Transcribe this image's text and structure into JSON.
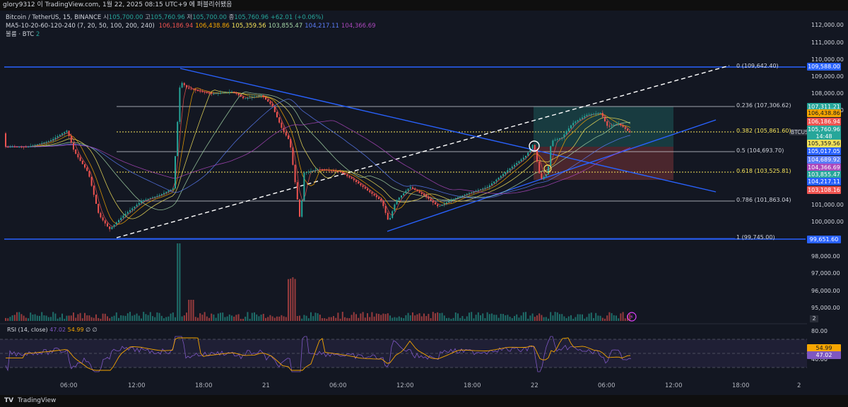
{
  "topbar": {
    "text": "glory9312 이 TradingView.com, 1월 22, 2025 08:15 UTC+9 에 퍼블리쉬됐음"
  },
  "legend": {
    "symbol": "Bitcoin / TetherUS, 15, BINANCE",
    "ohlc_open_label": "시",
    "ohlc_open": "105,700.00",
    "ohlc_high_label": "고",
    "ohlc_high": "105,760.96",
    "ohlc_low_label": "저",
    "ohlc_low": "105,700.00",
    "ohlc_close_label": "종",
    "ohlc_close": "105,760.96",
    "ohlc_change": "+62.01 (+0.06%)",
    "ma_title": "MA5-10-20-60-120-240 (7, 20, 50, 100, 200, 240)",
    "ma_values": [
      {
        "value": "106,186.94",
        "color": "#ef5350"
      },
      {
        "value": "106,438.86",
        "color": "#f7a600"
      },
      {
        "value": "105,359.56",
        "color": "#f5e35a"
      },
      {
        "value": "103,855.47",
        "color": "#a5d6a7"
      },
      {
        "value": "104,217.11",
        "color": "#5b7cf7"
      },
      {
        "value": "104,366.69",
        "color": "#ab47bc"
      }
    ],
    "volume_label": "볼륨 · BTC",
    "volume_value": "2"
  },
  "price_axis": {
    "ticks": [
      "112,000.00",
      "111,000.00",
      "110,000.00",
      "109,000.00",
      "108,000.00",
      "107,000.00",
      "101,000.00",
      "100,000.00",
      "99,000.00",
      "98,000.00",
      "97,000.00",
      "96,000.00",
      "95,000.00"
    ],
    "rsi_ticks": [
      "80.00",
      "40.00"
    ]
  },
  "price_tags": [
    {
      "text": "109,588.00",
      "color": "#2962ff"
    },
    {
      "text": "107,311.21",
      "color": "#26a69a"
    },
    {
      "text": "106,438.86",
      "color": "#f7a600"
    },
    {
      "text": "106,186.94",
      "color": "#ef5350"
    },
    {
      "text": "105,760.96",
      "color": "#26a69a"
    },
    {
      "text": "14:48",
      "color": "#26a69a"
    },
    {
      "text": "105,359.56",
      "color": "#f5e35a"
    },
    {
      "text": "105,017.05",
      "color": "#2962ff"
    },
    {
      "text": "104,689.92",
      "color": "#5b7cf7"
    },
    {
      "text": "104,366.69",
      "color": "#ab47bc"
    },
    {
      "text": "103,855.47",
      "color": "#26a69a"
    },
    {
      "text": "104,217.11",
      "color": "#2962ff"
    },
    {
      "text": "103,108.16",
      "color": "#ef5350"
    },
    {
      "text": "99,651.60",
      "color": "#2962ff"
    },
    {
      "text": "54.99",
      "color": "#f7a600"
    },
    {
      "text": "47.02",
      "color": "#7e57c2"
    }
  ],
  "fib_levels": [
    {
      "label": "0 (109,642.40)"
    },
    {
      "label": "0.236 (107,306.62)"
    },
    {
      "label": "0.382 (105,861.60)"
    },
    {
      "label": "0.5 (104,693.70)"
    },
    {
      "label": "0.618 (103,525.81)"
    },
    {
      "label": "0.786 (101,863.04)"
    },
    {
      "label": "1 (99,745.00)"
    }
  ],
  "symbol_badge": "BTCUSDT",
  "rsi": {
    "title": "RSI (14, close)",
    "v1": "47.02",
    "v2": "54.99",
    "extra": "∅ ∅"
  },
  "time_axis": [
    "06:00",
    "12:00",
    "18:00",
    "21",
    "06:00",
    "12:00",
    "18:00",
    "22",
    "06:00",
    "12:00",
    "18:00",
    "2"
  ],
  "branding": {
    "logo": "𝗧𝗩",
    "name": "TradingView"
  },
  "colors": {
    "up": "#26a69a",
    "down": "#ef5350",
    "trend": "#2962ff",
    "fib": "#d1d4dc"
  }
}
